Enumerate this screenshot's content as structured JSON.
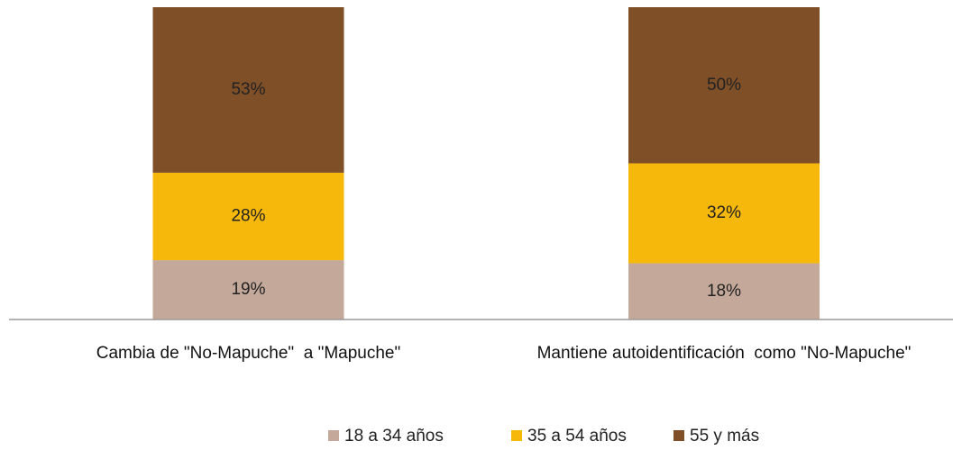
{
  "chart_data": {
    "type": "stacked_bar",
    "categories": [
      "Cambia de \"No-Mapuche\"  a \"Mapuche\"",
      "Mantiene autoidentificación  como \"No-Mapuche\""
    ],
    "series": [
      {
        "name": "18 a 34 años",
        "color": "#c4a99a",
        "values": [
          19,
          18
        ],
        "value_labels": [
          "19%",
          "18%"
        ]
      },
      {
        "name": "35 a 54 años",
        "color": "#f7b80c",
        "values": [
          28,
          32
        ],
        "value_labels": [
          "28%",
          "32%"
        ]
      },
      {
        "name": "55 y más",
        "color": "#7f4f28",
        "values": [
          53,
          50
        ],
        "value_labels": [
          "53%",
          "50%"
        ]
      }
    ],
    "ylim": [
      0,
      100
    ],
    "legend": "bottom"
  }
}
